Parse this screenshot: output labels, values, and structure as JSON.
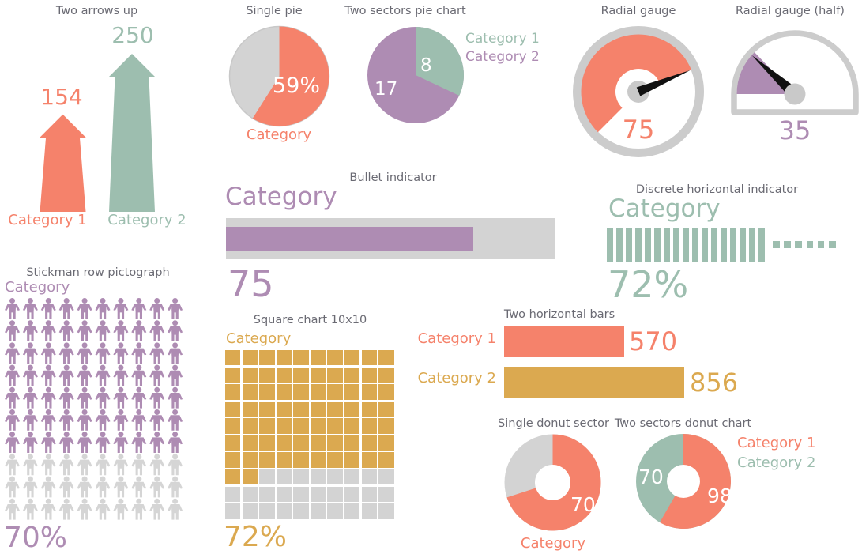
{
  "palette": {
    "salmon": "#F5826B",
    "green": "#9DBEAF",
    "purple": "#AE8CB3",
    "gold": "#DBA950",
    "gray": "#D3D3D3",
    "ring_gray": "#CCCCCC",
    "hub_gray": "#C9C9C9",
    "title_gray": "#6A6A73",
    "needle_black": "#111111",
    "white": "#FFFFFF"
  },
  "chart_data": [
    {
      "type": "pictorial-bar",
      "title": "Two arrows up",
      "categories": [
        "Category 1",
        "Category 2"
      ],
      "values": [
        154,
        250
      ],
      "colors": [
        "salmon",
        "green"
      ],
      "ymax": 250
    },
    {
      "type": "pie",
      "title": "Single pie",
      "value_pct": 59,
      "value_label": "59%",
      "category_label": "Category",
      "color": "salmon",
      "rest_color": "gray"
    },
    {
      "type": "pie",
      "title": "Two sectors pie chart",
      "series": [
        {
          "name": "Category 1",
          "value": 8,
          "color": "green"
        },
        {
          "name": "Category 2",
          "value": 17,
          "color": "purple"
        }
      ]
    },
    {
      "type": "gauge",
      "title": "Radial gauge",
      "value": 75,
      "min": 0,
      "max": 100,
      "sweep_deg": 270,
      "color": "salmon"
    },
    {
      "type": "gauge-half",
      "title": "Radial gauge (half)",
      "value": 35,
      "min": 0,
      "max": 100,
      "sweep_deg": 180,
      "color": "purple"
    },
    {
      "type": "bullet",
      "title": "Bullet indicator",
      "category_label": "Category",
      "value": 75,
      "max": 100,
      "color": "purple"
    },
    {
      "type": "discrete-horizontal",
      "title": "Discrete horizontal indicator",
      "category_label": "Category",
      "percent": 72,
      "value_label": "72%",
      "filled_bars": 17,
      "dots": 6,
      "color": "green"
    },
    {
      "type": "pictograph",
      "title": "Stickman row pictograph",
      "category_label": "Category",
      "percent": 70,
      "value_label": "70%",
      "total": 100,
      "columns": 10,
      "color": "purple"
    },
    {
      "type": "waffle",
      "title": "Square chart 10x10",
      "category_label": "Category",
      "percent": 72,
      "value_label": "72%",
      "total": 100,
      "columns": 10,
      "color": "gold"
    },
    {
      "type": "bar",
      "title": "Two horizontal bars",
      "categories": [
        "Category 1",
        "Category 2"
      ],
      "values": [
        570,
        856
      ],
      "colors": [
        "salmon",
        "gold"
      ],
      "xmax": 856
    },
    {
      "type": "donut",
      "title": "Single donut sector",
      "value_pct": 70,
      "value_label": "70",
      "category_label": "Category",
      "color": "salmon",
      "rest_color": "gray"
    },
    {
      "type": "donut",
      "title": "Two sectors donut chart",
      "series": [
        {
          "name": "Category 1",
          "value": 98,
          "color": "salmon"
        },
        {
          "name": "Category 2",
          "value": 70,
          "color": "green"
        }
      ]
    }
  ]
}
